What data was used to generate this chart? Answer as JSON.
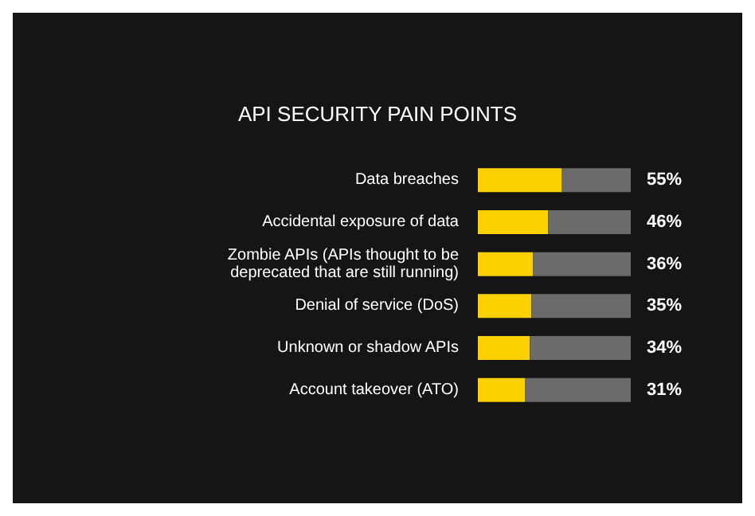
{
  "chart_data": {
    "type": "bar",
    "orientation": "horizontal",
    "stacked": true,
    "title": "API SECURITY PAIN POINTS",
    "categories": [
      "Data breaches",
      "Accidental exposure of data",
      "Zombie APIs (APIs thought to be\ndeprecated that are still running)",
      "Denial of service (DoS)",
      "Unknown or shadow APIs",
      "Account takeover (ATO)"
    ],
    "series": [
      {
        "color": "#fdd000",
        "values": [
          55,
          46,
          36,
          35,
          34,
          31
        ],
        "value_labels": [
          "55%",
          "46%",
          "36%",
          "35%",
          "34%",
          "31%"
        ]
      },
      {
        "color": "#6b6b6b",
        "values": [
          45,
          54,
          64,
          65,
          66,
          69
        ]
      }
    ],
    "xlim": [
      0,
      100
    ],
    "tick_labels": "y",
    "grid": false
  }
}
